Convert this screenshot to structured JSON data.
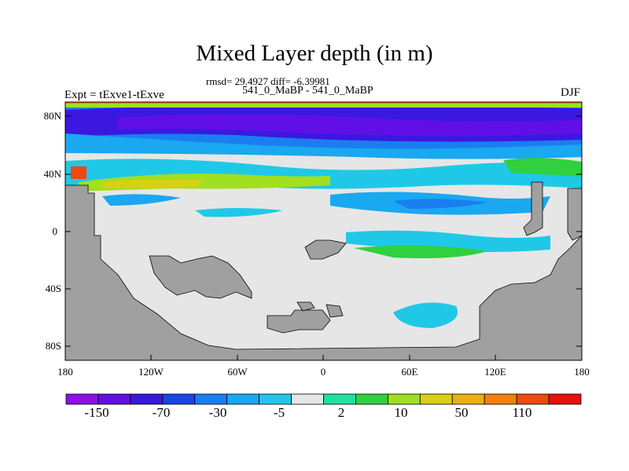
{
  "title": "Mixed Layer depth (in m)",
  "stats_line": "rmsd= 29.4927 diff= -6.39981",
  "subtitle": "541_0_MaBP - 541_0_MaBP",
  "left_label": "Expt = tExve1-tExve",
  "right_label": "DJF",
  "map": {
    "projection": "cylindrical-equidistant",
    "lon_range": [
      -180,
      180
    ],
    "lat_range": [
      -90,
      90
    ],
    "lat_ticks": [
      "80N",
      "40N",
      "0",
      "40S",
      "80S"
    ],
    "lon_ticks": [
      "180",
      "120W",
      "60W",
      "0",
      "60E",
      "120E",
      "180"
    ],
    "land_color": "#a0a0a0",
    "zero_color": "#e6e6e6"
  },
  "colorbar": {
    "colors": [
      "#8c10e8",
      "#6010e6",
      "#3a18e0",
      "#1a44e8",
      "#1a7ef0",
      "#1aa8f0",
      "#20c8e8",
      "#e6e6e6",
      "#20e0a0",
      "#30d040",
      "#a0e020",
      "#d8d010",
      "#e8b010",
      "#f08010",
      "#f04810",
      "#e81010"
    ],
    "labels": [
      "-150",
      "-70",
      "-30",
      "-5",
      "2",
      "10",
      "50",
      "110"
    ]
  }
}
